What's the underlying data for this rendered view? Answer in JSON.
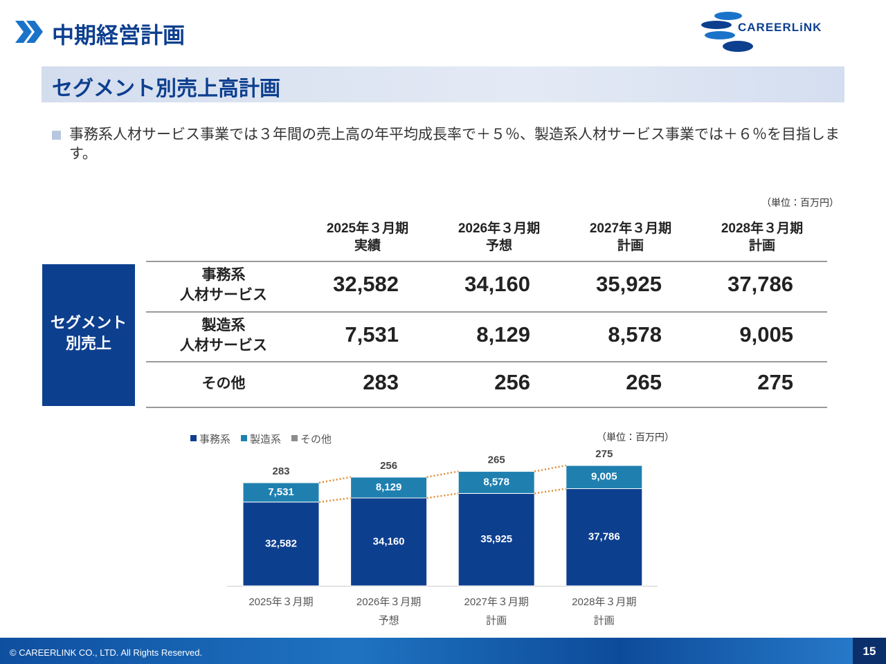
{
  "header": {
    "title": "中期経営計画",
    "logo": "CAREERLiNK"
  },
  "section": {
    "title": "セグメント別売上高計画"
  },
  "bullet": "事務系人材サービス事業では３年間の売上高の年平均成長率で＋５％、製造系人材サービス事業では＋６％を目指します。",
  "table": {
    "unit": "（単位：百万円）",
    "group": "セグメント\n別売上",
    "columns": [
      "2025年３月期\n実績",
      "2026年３月期\n予想",
      "2027年３月期\n計画",
      "2028年３月期\n計画"
    ],
    "rows": [
      {
        "label": "事務系\n人材サービス",
        "cells": [
          "32,582",
          "34,160",
          "35,925",
          "37,786"
        ]
      },
      {
        "label": "製造系\n人材サービス",
        "cells": [
          "7,531",
          "8,129",
          "8,578",
          "9,005"
        ]
      },
      {
        "label": "その他",
        "cells": [
          "283",
          "256",
          "265",
          "275"
        ]
      }
    ]
  },
  "chart_data": {
    "type": "bar",
    "stacked": true,
    "unit": "（単位：百万円）",
    "legend": "top-left",
    "categories": [
      "2025年３月期",
      "2026年３月期\n予想",
      "2027年３月期\n計画",
      "2028年３月期\n計画"
    ],
    "series": [
      {
        "name": "事務系",
        "color": "#0d3f8f",
        "values": [
          32582,
          34160,
          35925,
          37786
        ],
        "value_labels": [
          "32,582",
          "34,160",
          "35,925",
          "37,786"
        ]
      },
      {
        "name": "製造系",
        "color": "#1f80b0",
        "values": [
          7531,
          8129,
          8578,
          9005
        ],
        "value_labels": [
          "7,531",
          "8,129",
          "8,578",
          "9,005"
        ]
      },
      {
        "name": "その他",
        "color": "#8c8c8c",
        "values": [
          283,
          256,
          265,
          275
        ]
      }
    ]
  },
  "footer": {
    "copyright": "© CAREERLINK CO., LTD. All Rights Reserved.",
    "page": "15"
  }
}
